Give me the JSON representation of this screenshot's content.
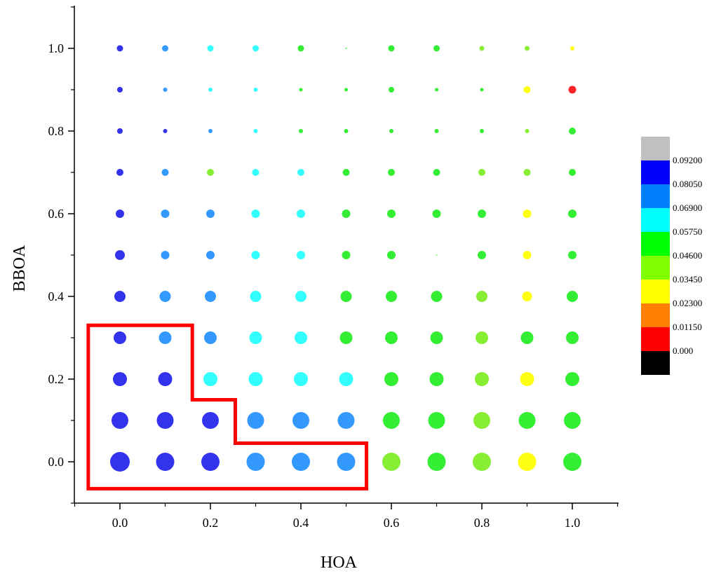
{
  "chart_data": {
    "type": "scatter",
    "subtype": "bubble-grid",
    "xlabel": "HOA",
    "ylabel": "BBOA",
    "xlim": [
      -0.1,
      1.1
    ],
    "ylim": [
      -0.1,
      1.1
    ],
    "x_ticks": [
      "0.0",
      "0.2",
      "0.4",
      "0.6",
      "0.8",
      "1.0"
    ],
    "y_ticks": [
      "0.0",
      "0.2",
      "0.4",
      "0.6",
      "0.8",
      "1.0"
    ],
    "x_tick_values": [
      0,
      0.2,
      0.4,
      0.6,
      0.8,
      1.0
    ],
    "y_tick_values": [
      0,
      0.2,
      0.4,
      0.6,
      0.8,
      1.0
    ],
    "x_values": [
      0,
      0.1,
      0.2,
      0.3,
      0.4,
      0.5,
      0.6,
      0.7,
      0.8,
      0.9,
      1.0
    ],
    "y_values": [
      0,
      0.1,
      0.2,
      0.3,
      0.4,
      0.5,
      0.6,
      0.7,
      0.8,
      0.9,
      1.0
    ],
    "color_categories_by_row": [
      [
        "b",
        "l",
        "b",
        "l",
        "c",
        "c",
        "l",
        "l",
        "c",
        "c",
        "c"
      ],
      [
        "b",
        "b",
        "b",
        "l",
        "l",
        "l",
        "g",
        "g",
        "g",
        "g",
        "g"
      ],
      [
        "b",
        "b",
        "b",
        "b",
        "l",
        "c",
        "c",
        "g",
        "g",
        "g",
        "g"
      ],
      [
        "b",
        "l",
        "c",
        "c",
        "c",
        "g",
        "g",
        "g",
        "g",
        "g",
        "g"
      ],
      [
        "b",
        "l",
        "l",
        "c",
        "c",
        "g",
        "g",
        "g",
        "g",
        "g",
        "g"
      ],
      [
        "b",
        "l",
        "l",
        "c",
        "c",
        "g",
        "g",
        "g",
        "g",
        "g",
        "g"
      ],
      [
        "b",
        "l",
        "l",
        "c",
        "c",
        "g",
        "g",
        "g",
        "g",
        "g",
        "g"
      ],
      [
        "b",
        "l",
        "lg",
        "c",
        "c",
        "g",
        "g",
        "g",
        "lg",
        "lg",
        "g"
      ],
      [
        "b",
        "b",
        "l",
        "c",
        "g",
        "g",
        "g",
        "g",
        "g",
        "lg",
        "g"
      ],
      [
        "b",
        "l",
        "c",
        "c",
        "g",
        "g",
        "g",
        "g",
        "g",
        "y",
        "r"
      ],
      [
        "b",
        "l",
        "c",
        "c",
        "g",
        "g",
        "g",
        "g",
        "lg",
        "lg",
        "y"
      ]
    ],
    "color_grid": [
      [
        "b",
        "b",
        "b",
        "l",
        "l",
        "l",
        "lg",
        "g",
        "lg",
        "y",
        "g"
      ],
      [
        "b",
        "b",
        "b",
        "l",
        "l",
        "l",
        "g",
        "g",
        "lg",
        "g",
        "g"
      ],
      [
        "b",
        "b",
        "c",
        "c",
        "c",
        "c",
        "g",
        "g",
        "lg",
        "y",
        "g"
      ],
      [
        "b",
        "l",
        "l",
        "c",
        "c",
        "g",
        "g",
        "g",
        "lg",
        "g",
        "g"
      ],
      [
        "b",
        "l",
        "l",
        "c",
        "c",
        "g",
        "g",
        "g",
        "lg",
        "y",
        "g"
      ],
      [
        "b",
        "l",
        "l",
        "c",
        "c",
        "g",
        "g",
        "lg",
        "g",
        "y",
        "g"
      ],
      [
        "b",
        "l",
        "l",
        "c",
        "c",
        "g",
        "g",
        "g",
        "g",
        "y",
        "g"
      ],
      [
        "b",
        "l",
        "lg",
        "c",
        "c",
        "g",
        "g",
        "g",
        "lg",
        "lg",
        "g"
      ],
      [
        "b",
        "b",
        "l",
        "c",
        "g",
        "g",
        "g",
        "g",
        "g",
        "lg",
        "g"
      ],
      [
        "b",
        "l",
        "c",
        "c",
        "g",
        "g",
        "g",
        "g",
        "g",
        "y",
        "r"
      ],
      [
        "b",
        "l",
        "c",
        "c",
        "g",
        "g",
        "g",
        "g",
        "lg",
        "lg",
        "y"
      ]
    ],
    "size_grid": [
      [
        14,
        13,
        13,
        13,
        13,
        13,
        13,
        13,
        13,
        13,
        13
      ],
      [
        12,
        12,
        12,
        12,
        12,
        12,
        12,
        12,
        12,
        12,
        12
      ],
      [
        10,
        10,
        10,
        10,
        10,
        10,
        10,
        10,
        10,
        10,
        10
      ],
      [
        9,
        9,
        9,
        9,
        9,
        9,
        9,
        9,
        9,
        9,
        9
      ],
      [
        8,
        8,
        8,
        8,
        8,
        8,
        8,
        8,
        8,
        7,
        8
      ],
      [
        7,
        6,
        6,
        6,
        6,
        6,
        6,
        1,
        6,
        6,
        6
      ],
      [
        6,
        6,
        6,
        6,
        6,
        6,
        6,
        6,
        6,
        6,
        6
      ],
      [
        5,
        5,
        5,
        5,
        5,
        5,
        5,
        5,
        5,
        5,
        5
      ],
      [
        4,
        3,
        3,
        3,
        3,
        3,
        3,
        3,
        3,
        3,
        5
      ],
      [
        4,
        3,
        3,
        3,
        2.5,
        2.5,
        4,
        2.5,
        2.5,
        5,
        5.5
      ],
      [
        4.5,
        4.5,
        4.5,
        4.5,
        4.5,
        1,
        4.5,
        4.5,
        3.5,
        3.5,
        3
      ]
    ],
    "color_key": {
      "b": "#3333ee",
      "l": "#3399ff",
      "c": "#33ffff",
      "g": "#33ee33",
      "lg": "#88ee33",
      "y": "#ffff11",
      "r": "#ff2222"
    },
    "colorbar": {
      "labels": [
        "0.09200",
        "0.08050",
        "0.06900",
        "0.05750",
        "0.04600",
        "0.03450",
        "0.02300",
        "0.01150",
        "0.000"
      ],
      "colors": [
        "#c0c0c0",
        "#0000ff",
        "#0080ff",
        "#00ffff",
        "#00ff00",
        "#80ff00",
        "#ffff00",
        "#ff8000",
        "#ff0000",
        "#000000"
      ]
    },
    "highlight": {
      "color": "#ff0000",
      "polygon_data": [
        [
          -0.07,
          0.33
        ],
        [
          0.16,
          0.33
        ],
        [
          0.16,
          0.15
        ],
        [
          0.255,
          0.15
        ],
        [
          0.255,
          0.045
        ],
        [
          0.545,
          0.045
        ],
        [
          0.545,
          -0.065
        ],
        [
          -0.07,
          -0.065
        ]
      ]
    }
  }
}
